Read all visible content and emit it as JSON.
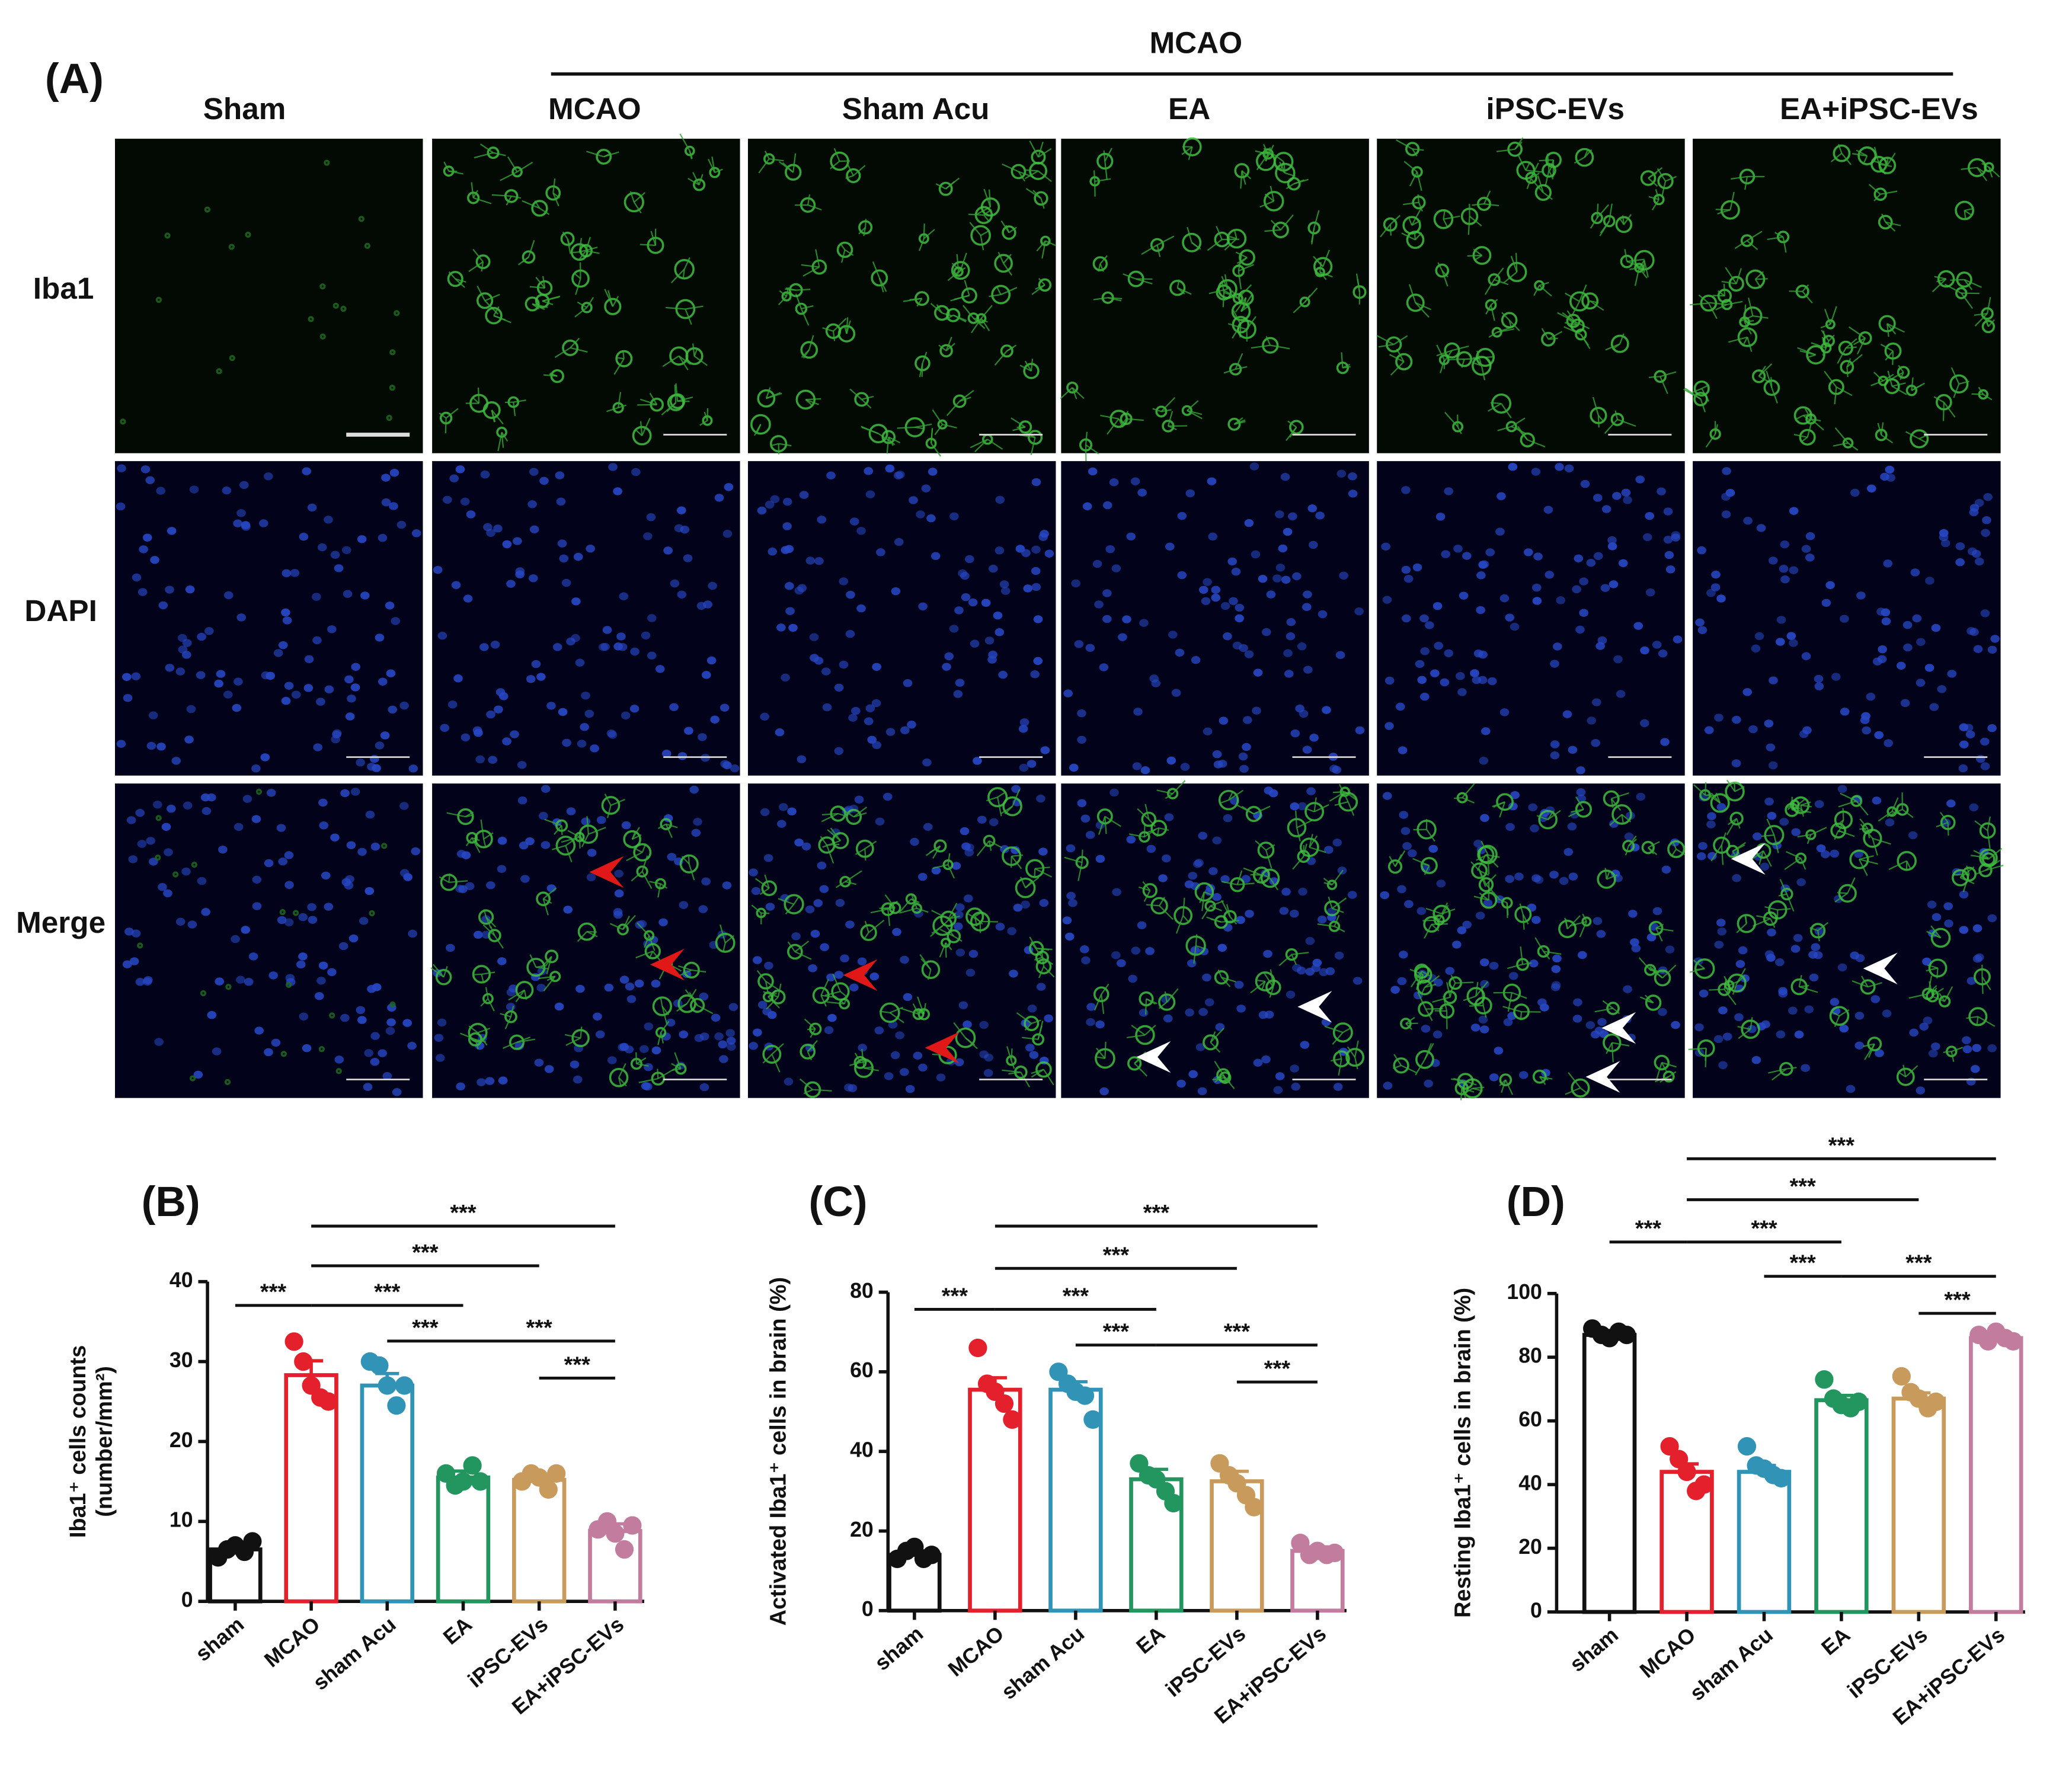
{
  "panel_a": {
    "label": "(A)",
    "group_header": "MCAO",
    "columns": [
      "Sham",
      "MCAO",
      "Sham Acu",
      "EA",
      "iPSC-EVs",
      "EA+iPSC-EVs"
    ],
    "rows": [
      "Iba1",
      "DAPI",
      "Merge"
    ]
  },
  "chart_data": [
    {
      "type": "bar",
      "panel_label": "(B)",
      "ylabel": [
        "Iba1⁺ cells counts",
        "(number/mm²)"
      ],
      "categories": [
        "sham",
        "MCAO",
        "sham Acu",
        "EA",
        "iPSC-EVs",
        "EA+iPSC-EVs"
      ],
      "values": [
        6.5,
        28.3,
        27,
        15.5,
        15.2,
        8.8
      ],
      "errors": [
        0.5,
        1.8,
        1.5,
        0.8,
        0.6,
        0.9
      ],
      "points": [
        [
          5.5,
          6.5,
          7,
          6.2,
          7.5
        ],
        [
          32.5,
          30,
          27,
          25.5,
          25
        ],
        [
          30,
          29.5,
          27,
          24.5,
          27
        ],
        [
          16,
          14.5,
          15,
          17,
          15
        ],
        [
          15,
          16,
          15.5,
          14,
          16
        ],
        [
          9,
          10,
          8.5,
          6.5,
          9.5
        ]
      ],
      "colors": [
        "#111111",
        "#e3202b",
        "#3193b6",
        "#23955e",
        "#c89a5c",
        "#c27c9d"
      ],
      "ylim": [
        0,
        40
      ],
      "yticks": [
        0,
        10,
        20,
        30,
        40
      ],
      "significance": [
        {
          "between": [
            "sham",
            "MCAO"
          ],
          "label": "***"
        },
        {
          "between": [
            "MCAO",
            "EA"
          ],
          "label": "***"
        },
        {
          "between": [
            "MCAO",
            "iPSC-EVs"
          ],
          "label": "***"
        },
        {
          "between": [
            "MCAO",
            "EA+iPSC-EVs"
          ],
          "label": "***"
        },
        {
          "between": [
            "sham Acu",
            "EA"
          ],
          "label": "***"
        },
        {
          "between": [
            "EA",
            "EA+iPSC-EVs"
          ],
          "label": "***"
        },
        {
          "between": [
            "iPSC-EVs",
            "EA+iPSC-EVs"
          ],
          "label": "***"
        }
      ]
    },
    {
      "type": "bar",
      "panel_label": "(C)",
      "ylabel": [
        "Activated Iba1⁺ cells in brain (%)"
      ],
      "categories": [
        "sham",
        "MCAO",
        "sham Acu",
        "EA",
        "iPSC-EVs",
        "EA+iPSC-EVs"
      ],
      "values": [
        14,
        55.5,
        55.5,
        33,
        32.5,
        15
      ],
      "errors": [
        1,
        3,
        2,
        2.5,
        2.5,
        1
      ],
      "points": [
        [
          13,
          15,
          16,
          13,
          14
        ],
        [
          66,
          57,
          55,
          52,
          48
        ],
        [
          60,
          57,
          55,
          54,
          48
        ],
        [
          37,
          34,
          33,
          30,
          27
        ],
        [
          37,
          34,
          32,
          29,
          26
        ],
        [
          17,
          14,
          15,
          14,
          14.5
        ]
      ],
      "colors": [
        "#111111",
        "#e3202b",
        "#3193b6",
        "#23955e",
        "#c89a5c",
        "#c27c9d"
      ],
      "ylim": [
        0,
        80
      ],
      "yticks": [
        0,
        20,
        40,
        60,
        80
      ],
      "significance": [
        {
          "between": [
            "sham",
            "MCAO"
          ],
          "label": "***"
        },
        {
          "between": [
            "MCAO",
            "EA"
          ],
          "label": "***"
        },
        {
          "between": [
            "MCAO",
            "iPSC-EVs"
          ],
          "label": "***"
        },
        {
          "between": [
            "MCAO",
            "EA+iPSC-EVs"
          ],
          "label": "***"
        },
        {
          "between": [
            "sham Acu",
            "EA"
          ],
          "label": "***"
        },
        {
          "between": [
            "EA",
            "EA+iPSC-EVs"
          ],
          "label": "***"
        },
        {
          "between": [
            "iPSC-EVs",
            "EA+iPSC-EVs"
          ],
          "label": "***"
        }
      ]
    },
    {
      "type": "bar",
      "panel_label": "(D)",
      "ylabel": [
        "Resting Iba1⁺ cells in brain (%)"
      ],
      "categories": [
        "sham",
        "MCAO",
        "sham Acu",
        "EA",
        "iPSC-EVs",
        "EA+iPSC-EVs"
      ],
      "values": [
        87,
        44,
        44,
        66.5,
        67,
        86
      ],
      "errors": [
        0.8,
        2.5,
        2,
        1.5,
        1.8,
        0.7
      ],
      "points": [
        [
          89,
          87,
          86,
          88,
          87
        ],
        [
          52,
          48,
          44,
          38,
          40
        ],
        [
          52,
          46,
          45,
          43,
          42
        ],
        [
          73,
          67,
          65,
          64,
          66
        ],
        [
          74,
          69,
          67,
          64,
          66
        ],
        [
          87,
          85,
          88,
          86,
          85
        ]
      ],
      "colors": [
        "#111111",
        "#e3202b",
        "#3193b6",
        "#23955e",
        "#c89a5c",
        "#c27c9d"
      ],
      "ylim": [
        0,
        100
      ],
      "yticks": [
        0,
        20,
        40,
        60,
        80,
        100
      ],
      "significance": [
        {
          "between": [
            "sham",
            "MCAO"
          ],
          "label": "***"
        },
        {
          "between": [
            "MCAO",
            "EA"
          ],
          "label": "***"
        },
        {
          "between": [
            "MCAO",
            "iPSC-EVs"
          ],
          "label": "***"
        },
        {
          "between": [
            "MCAO",
            "EA+iPSC-EVs"
          ],
          "label": "***"
        },
        {
          "between": [
            "sham Acu",
            "EA"
          ],
          "label": "***"
        },
        {
          "between": [
            "EA",
            "EA+iPSC-EVs"
          ],
          "label": "***"
        },
        {
          "between": [
            "iPSC-EVs",
            "EA+iPSC-EVs"
          ],
          "label": "***"
        }
      ]
    }
  ]
}
